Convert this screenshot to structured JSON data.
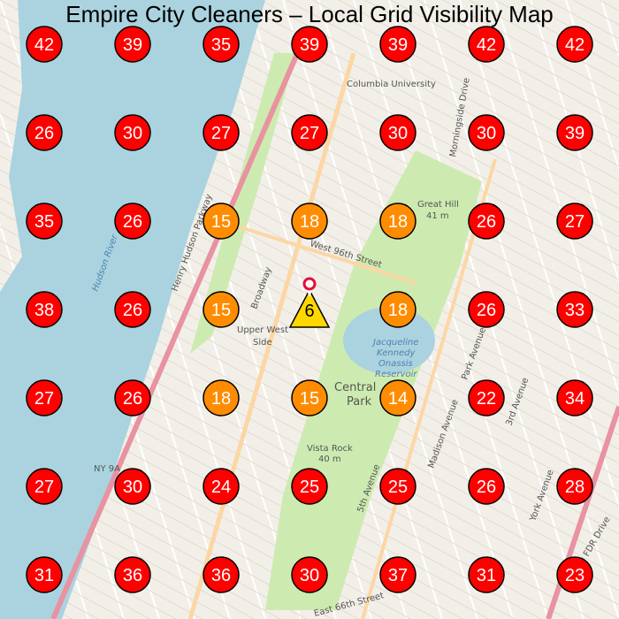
{
  "title": "Empire City Cleaners – Local Grid Visibility Map",
  "colors": {
    "high": "#ff0000",
    "mid": "#ff8c00",
    "low": "#ffd700",
    "pin": "#e0103a",
    "water": "#aad3df",
    "park": "#cdebb0",
    "land": "#f2efe9"
  },
  "grid": {
    "rows": [
      [
        42,
        39,
        35,
        39,
        39,
        42,
        42
      ],
      [
        26,
        30,
        27,
        27,
        30,
        30,
        39
      ],
      [
        35,
        26,
        15,
        18,
        18,
        26,
        27
      ],
      [
        38,
        26,
        15,
        6,
        18,
        26,
        33
      ],
      [
        27,
        26,
        18,
        15,
        14,
        22,
        34
      ],
      [
        27,
        30,
        24,
        25,
        25,
        26,
        28
      ],
      [
        31,
        36,
        36,
        30,
        37,
        31,
        23
      ]
    ],
    "business_cell": {
      "row": 3,
      "col": 3
    },
    "thresholds": {
      "low_below": 10,
      "mid_below": 20
    }
  },
  "map_labels": {
    "uws": "Upper West",
    "uws2": "Side",
    "central_park": "Central",
    "central_park2": "Park",
    "reservoir1": "Jacqueline",
    "reservoir2": "Kennedy",
    "reservoir3": "Onassis",
    "reservoir4": "Reservoir",
    "vista_rock": "Vista Rock",
    "vista_rock_elev": "40 m",
    "great_hill": "Great Hill",
    "great_hill_elev": "41 m",
    "w96": "West 96th Street",
    "broadway": "Broadway",
    "hhp": "Henry Hudson Parkway",
    "hudson_river": "Hudson River",
    "fifth": "5th Avenue",
    "madison": "Madison Avenue",
    "park_ave": "Park Avenue",
    "third": "3rd Avenue",
    "york": "York Avenue",
    "fdr": "FDR Drive",
    "ny9a": "NY 9A",
    "e66": "East 66th Street",
    "columbia": "Columbia University",
    "morningside": "Morningside Drive"
  }
}
